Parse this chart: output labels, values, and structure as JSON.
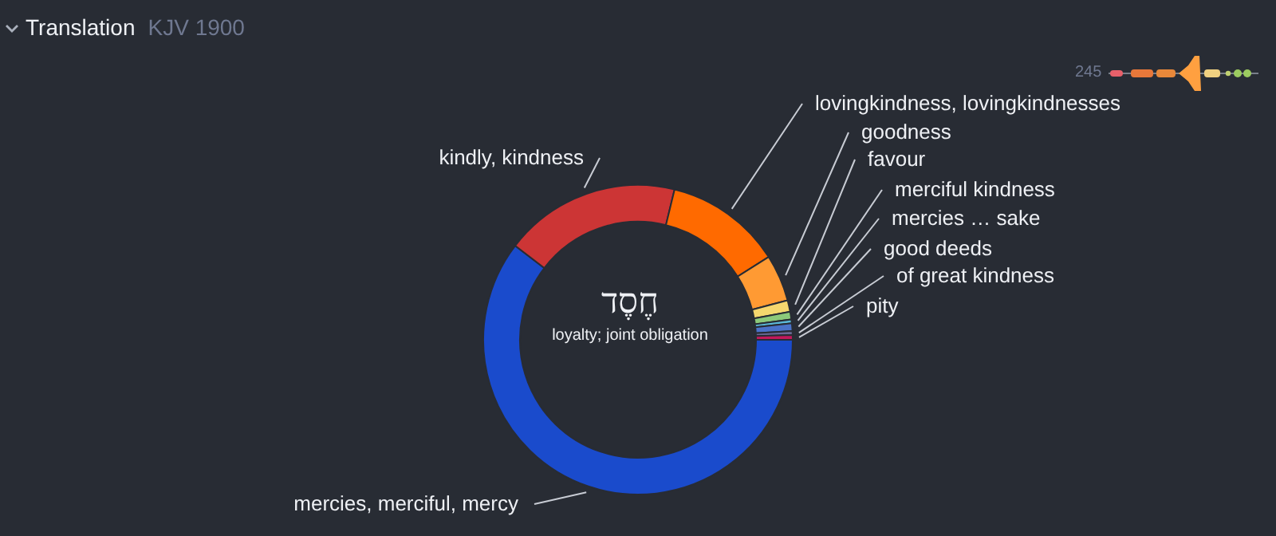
{
  "chart_data": {
    "type": "donut",
    "title": "Translation",
    "subtitle": "KJV 1900",
    "categories": [
      "mercies, merciful, mercy",
      "kindly, kindness",
      "lovingkindness, lovingkindnesses",
      "goodness",
      "favour",
      "merciful kindness",
      "mercies … sake",
      "good deeds",
      "of great kindness",
      "pity"
    ],
    "values": [
      60.4,
      18.4,
      12.2,
      4.9,
      1.2,
      0.8,
      0.4,
      0.8,
      0.4,
      0.5
    ],
    "colors": [
      "#1a4bcc",
      "#cc3535",
      "#ff6a00",
      "#ff9a33",
      "#f5d76e",
      "#8cc97a",
      "#5bb8d8",
      "#4a72c8",
      "#6a6a95",
      "#c2185b"
    ],
    "annotations": [
      "חֶסֶד",
      "loyalty; joint obligation",
      "245"
    ]
  }
}
